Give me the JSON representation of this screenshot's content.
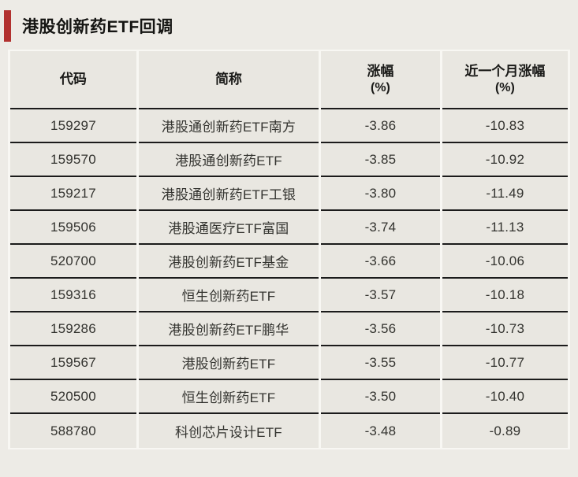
{
  "page": {
    "title": "港股创新药ETF回调"
  },
  "colors": {
    "accent_red": "#b2312f",
    "page_bg": "#edebe6",
    "cell_bg": "#e9e7e1",
    "frame": "#f8f7f3",
    "divider": "#1b1b1b"
  },
  "chart_data": {
    "type": "table",
    "title": "港股创新药ETF回调",
    "columns": [
      {
        "key": "code",
        "label": "代码",
        "sub": ""
      },
      {
        "key": "name",
        "label": "简称",
        "sub": ""
      },
      {
        "key": "change_pct",
        "label": "涨幅",
        "sub": "(%)"
      },
      {
        "key": "month_change_pct",
        "label": "近一个月涨幅",
        "sub": "(%)"
      }
    ],
    "rows": [
      {
        "code": "159297",
        "name": "港股通创新药ETF南方",
        "change_pct": "-3.86",
        "month_change_pct": "-10.83"
      },
      {
        "code": "159570",
        "name": "港股通创新药ETF",
        "change_pct": "-3.85",
        "month_change_pct": "-10.92"
      },
      {
        "code": "159217",
        "name": "港股通创新药ETF工银",
        "change_pct": "-3.80",
        "month_change_pct": "-11.49"
      },
      {
        "code": "159506",
        "name": "港股通医疗ETF富国",
        "change_pct": "-3.74",
        "month_change_pct": "-11.13"
      },
      {
        "code": "520700",
        "name": "港股创新药ETF基金",
        "change_pct": "-3.66",
        "month_change_pct": "-10.06"
      },
      {
        "code": "159316",
        "name": "恒生创新药ETF",
        "change_pct": "-3.57",
        "month_change_pct": "-10.18"
      },
      {
        "code": "159286",
        "name": "港股创新药ETF鹏华",
        "change_pct": "-3.56",
        "month_change_pct": "-10.73"
      },
      {
        "code": "159567",
        "name": "港股创新药ETF",
        "change_pct": "-3.55",
        "month_change_pct": "-10.77"
      },
      {
        "code": "520500",
        "name": "恒生创新药ETF",
        "change_pct": "-3.50",
        "month_change_pct": "-10.40"
      },
      {
        "code": "588780",
        "name": "科创芯片设计ETF",
        "change_pct": "-3.48",
        "month_change_pct": "-0.89"
      }
    ]
  }
}
